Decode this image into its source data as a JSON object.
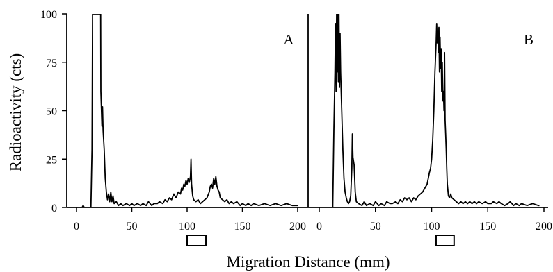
{
  "chart_data": {
    "type": "line",
    "ylabel": "Radioactivity (cts)",
    "xlabel": "Migration Distance (mm)",
    "ylim": [
      0,
      100
    ],
    "yticks": [
      0,
      25,
      50,
      75,
      100
    ],
    "xlim": [
      -10,
      205
    ],
    "xticks": [
      0,
      50,
      100,
      150,
      200
    ],
    "grid": false,
    "panels": [
      {
        "label": "A",
        "marker_box": [
          100,
          117
        ],
        "points": [
          [
            5,
            0
          ],
          [
            6,
            1
          ],
          [
            7,
            0
          ],
          [
            10,
            0
          ],
          [
            12,
            0
          ],
          [
            13,
            0
          ],
          [
            14,
            30
          ],
          [
            14.5,
            100
          ],
          [
            15,
            100
          ],
          [
            16,
            100
          ],
          [
            17,
            100
          ],
          [
            18,
            100
          ],
          [
            19,
            100
          ],
          [
            20,
            100
          ],
          [
            21,
            100
          ],
          [
            21.8,
            100
          ],
          [
            22,
            60
          ],
          [
            23,
            42
          ],
          [
            23.5,
            52
          ],
          [
            24,
            40
          ],
          [
            25,
            30
          ],
          [
            26,
            15
          ],
          [
            27,
            8
          ],
          [
            28,
            4
          ],
          [
            29,
            7
          ],
          [
            30,
            3
          ],
          [
            31,
            8
          ],
          [
            32,
            3
          ],
          [
            33,
            6
          ],
          [
            34,
            2
          ],
          [
            36,
            3
          ],
          [
            38,
            1
          ],
          [
            40,
            2
          ],
          [
            42,
            1
          ],
          [
            45,
            2
          ],
          [
            48,
            1
          ],
          [
            50,
            2
          ],
          [
            52,
            1
          ],
          [
            55,
            2
          ],
          [
            58,
            1
          ],
          [
            60,
            2
          ],
          [
            63,
            1
          ],
          [
            65,
            3
          ],
          [
            68,
            1
          ],
          [
            70,
            2
          ],
          [
            73,
            2
          ],
          [
            75,
            3
          ],
          [
            78,
            2
          ],
          [
            80,
            4
          ],
          [
            82,
            3
          ],
          [
            84,
            5
          ],
          [
            86,
            4
          ],
          [
            88,
            7
          ],
          [
            90,
            5
          ],
          [
            92,
            8
          ],
          [
            94,
            7
          ],
          [
            95,
            10
          ],
          [
            96,
            9
          ],
          [
            97,
            12
          ],
          [
            98,
            11
          ],
          [
            99,
            14
          ],
          [
            100,
            12
          ],
          [
            101,
            15
          ],
          [
            102,
            13
          ],
          [
            103,
            16
          ],
          [
            103.5,
            25
          ],
          [
            104,
            12
          ],
          [
            105,
            6
          ],
          [
            106,
            4
          ],
          [
            108,
            3
          ],
          [
            110,
            4
          ],
          [
            112,
            2
          ],
          [
            114,
            3
          ],
          [
            116,
            4
          ],
          [
            118,
            5
          ],
          [
            120,
            8
          ],
          [
            121,
            11
          ],
          [
            122,
            12
          ],
          [
            123,
            10
          ],
          [
            124,
            15
          ],
          [
            125,
            12
          ],
          [
            126,
            16
          ],
          [
            127,
            11
          ],
          [
            128,
            9
          ],
          [
            129,
            8
          ],
          [
            130,
            5
          ],
          [
            132,
            4
          ],
          [
            134,
            3
          ],
          [
            136,
            4
          ],
          [
            138,
            2
          ],
          [
            140,
            3
          ],
          [
            142,
            2
          ],
          [
            145,
            3
          ],
          [
            148,
            1
          ],
          [
            150,
            2
          ],
          [
            153,
            1
          ],
          [
            155,
            2
          ],
          [
            158,
            1
          ],
          [
            160,
            2
          ],
          [
            165,
            1
          ],
          [
            170,
            2
          ],
          [
            175,
            1
          ],
          [
            180,
            2
          ],
          [
            185,
            1
          ],
          [
            190,
            2
          ],
          [
            195,
            1
          ],
          [
            200,
            1
          ]
        ]
      },
      {
        "label": "B",
        "marker_box": [
          104,
          120
        ],
        "points": [
          [
            10,
            0
          ],
          [
            12,
            0
          ],
          [
            13,
            40
          ],
          [
            14,
            70
          ],
          [
            14.5,
            95
          ],
          [
            15,
            60
          ],
          [
            15.5,
            100
          ],
          [
            16,
            70
          ],
          [
            16.5,
            100
          ],
          [
            17,
            65
          ],
          [
            17.5,
            100
          ],
          [
            18,
            62
          ],
          [
            18.5,
            90
          ],
          [
            19,
            70
          ],
          [
            20,
            50
          ],
          [
            21,
            30
          ],
          [
            22,
            15
          ],
          [
            23,
            8
          ],
          [
            24,
            5
          ],
          [
            25,
            3
          ],
          [
            26,
            2
          ],
          [
            27,
            3
          ],
          [
            28,
            6
          ],
          [
            29,
            20
          ],
          [
            29.5,
            38
          ],
          [
            30,
            26
          ],
          [
            31,
            22
          ],
          [
            32,
            8
          ],
          [
            33,
            3
          ],
          [
            35,
            2
          ],
          [
            38,
            1
          ],
          [
            40,
            3
          ],
          [
            42,
            1
          ],
          [
            45,
            2
          ],
          [
            48,
            1
          ],
          [
            50,
            3
          ],
          [
            53,
            1
          ],
          [
            55,
            2
          ],
          [
            58,
            1
          ],
          [
            60,
            3
          ],
          [
            63,
            2
          ],
          [
            65,
            2
          ],
          [
            68,
            3
          ],
          [
            70,
            2
          ],
          [
            72,
            4
          ],
          [
            74,
            3
          ],
          [
            76,
            5
          ],
          [
            78,
            4
          ],
          [
            80,
            5
          ],
          [
            82,
            3
          ],
          [
            84,
            5
          ],
          [
            86,
            4
          ],
          [
            88,
            6
          ],
          [
            90,
            7
          ],
          [
            92,
            8
          ],
          [
            94,
            10
          ],
          [
            96,
            12
          ],
          [
            97,
            15
          ],
          [
            98,
            18
          ],
          [
            99,
            20
          ],
          [
            100,
            25
          ],
          [
            101,
            35
          ],
          [
            102,
            50
          ],
          [
            103,
            70
          ],
          [
            104,
            85
          ],
          [
            104.5,
            95
          ],
          [
            105,
            85
          ],
          [
            105.5,
            90
          ],
          [
            106,
            80
          ],
          [
            106.5,
            93
          ],
          [
            107,
            70
          ],
          [
            107.5,
            88
          ],
          [
            108,
            72
          ],
          [
            108.5,
            82
          ],
          [
            109,
            60
          ],
          [
            109.5,
            75
          ],
          [
            110,
            55
          ],
          [
            110.5,
            60
          ],
          [
            111,
            50
          ],
          [
            111.5,
            80
          ],
          [
            112,
            45
          ],
          [
            112.5,
            38
          ],
          [
            113,
            30
          ],
          [
            113.5,
            20
          ],
          [
            114,
            12
          ],
          [
            115,
            6
          ],
          [
            116,
            5
          ],
          [
            117,
            7
          ],
          [
            118,
            5
          ],
          [
            120,
            4
          ],
          [
            122,
            3
          ],
          [
            124,
            2
          ],
          [
            126,
            3
          ],
          [
            128,
            2
          ],
          [
            130,
            3
          ],
          [
            132,
            2
          ],
          [
            134,
            3
          ],
          [
            136,
            2
          ],
          [
            138,
            3
          ],
          [
            140,
            2
          ],
          [
            142,
            3
          ],
          [
            145,
            2
          ],
          [
            148,
            3
          ],
          [
            150,
            2
          ],
          [
            153,
            2
          ],
          [
            155,
            3
          ],
          [
            158,
            2
          ],
          [
            160,
            3
          ],
          [
            162,
            2
          ],
          [
            165,
            1
          ],
          [
            168,
            2
          ],
          [
            170,
            3
          ],
          [
            173,
            1
          ],
          [
            175,
            2
          ],
          [
            178,
            1
          ],
          [
            180,
            2
          ],
          [
            185,
            1
          ],
          [
            190,
            2
          ],
          [
            195,
            1
          ],
          [
            196,
            1
          ]
        ]
      }
    ]
  }
}
